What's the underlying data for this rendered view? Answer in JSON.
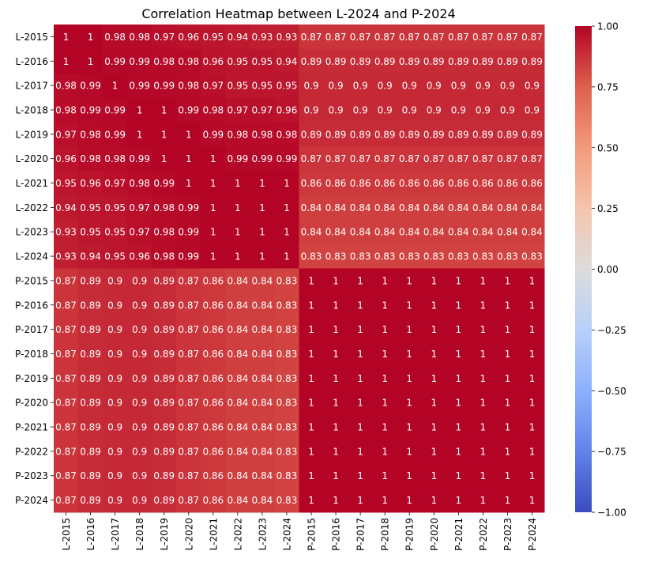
{
  "chart_data": {
    "type": "heatmap",
    "title": "Correlation Heatmap between L-2024 and P-2024",
    "xlabel": "",
    "ylabel": "",
    "rows": [
      "L-2015",
      "L-2016",
      "L-2017",
      "L-2018",
      "L-2019",
      "L-2020",
      "L-2021",
      "L-2022",
      "L-2023",
      "L-2024",
      "P-2015",
      "P-2016",
      "P-2017",
      "P-2018",
      "P-2019",
      "P-2020",
      "P-2021",
      "P-2022",
      "P-2023",
      "P-2024"
    ],
    "columns": [
      "L-2015",
      "L-2016",
      "L-2017",
      "L-2018",
      "L-2019",
      "L-2020",
      "L-2021",
      "L-2022",
      "L-2023",
      "L-2024",
      "P-2015",
      "P-2016",
      "P-2017",
      "P-2018",
      "P-2019",
      "P-2020",
      "P-2021",
      "P-2022",
      "P-2023",
      "P-2024"
    ],
    "values": [
      [
        1,
        1,
        0.98,
        0.98,
        0.97,
        0.96,
        0.95,
        0.94,
        0.93,
        0.93,
        0.87,
        0.87,
        0.87,
        0.87,
        0.87,
        0.87,
        0.87,
        0.87,
        0.87,
        0.87
      ],
      [
        1,
        1,
        0.99,
        0.99,
        0.98,
        0.98,
        0.96,
        0.95,
        0.95,
        0.94,
        0.89,
        0.89,
        0.89,
        0.89,
        0.89,
        0.89,
        0.89,
        0.89,
        0.89,
        0.89
      ],
      [
        0.98,
        0.99,
        1,
        0.99,
        0.99,
        0.98,
        0.97,
        0.95,
        0.95,
        0.95,
        0.9,
        0.9,
        0.9,
        0.9,
        0.9,
        0.9,
        0.9,
        0.9,
        0.9,
        0.9
      ],
      [
        0.98,
        0.99,
        0.99,
        1,
        1,
        0.99,
        0.98,
        0.97,
        0.97,
        0.96,
        0.9,
        0.9,
        0.9,
        0.9,
        0.9,
        0.9,
        0.9,
        0.9,
        0.9,
        0.9
      ],
      [
        0.97,
        0.98,
        0.99,
        1,
        1,
        1,
        0.99,
        0.98,
        0.98,
        0.98,
        0.89,
        0.89,
        0.89,
        0.89,
        0.89,
        0.89,
        0.89,
        0.89,
        0.89,
        0.89
      ],
      [
        0.96,
        0.98,
        0.98,
        0.99,
        1,
        1,
        1,
        0.99,
        0.99,
        0.99,
        0.87,
        0.87,
        0.87,
        0.87,
        0.87,
        0.87,
        0.87,
        0.87,
        0.87,
        0.87
      ],
      [
        0.95,
        0.96,
        0.97,
        0.98,
        0.99,
        1,
        1,
        1,
        1,
        1,
        0.86,
        0.86,
        0.86,
        0.86,
        0.86,
        0.86,
        0.86,
        0.86,
        0.86,
        0.86
      ],
      [
        0.94,
        0.95,
        0.95,
        0.97,
        0.98,
        0.99,
        1,
        1,
        1,
        1,
        0.84,
        0.84,
        0.84,
        0.84,
        0.84,
        0.84,
        0.84,
        0.84,
        0.84,
        0.84
      ],
      [
        0.93,
        0.95,
        0.95,
        0.97,
        0.98,
        0.99,
        1,
        1,
        1,
        1,
        0.84,
        0.84,
        0.84,
        0.84,
        0.84,
        0.84,
        0.84,
        0.84,
        0.84,
        0.84
      ],
      [
        0.93,
        0.94,
        0.95,
        0.96,
        0.98,
        0.99,
        1,
        1,
        1,
        1,
        0.83,
        0.83,
        0.83,
        0.83,
        0.83,
        0.83,
        0.83,
        0.83,
        0.83,
        0.83
      ],
      [
        0.87,
        0.89,
        0.9,
        0.9,
        0.89,
        0.87,
        0.86,
        0.84,
        0.84,
        0.83,
        1,
        1,
        1,
        1,
        1,
        1,
        1,
        1,
        1,
        1
      ],
      [
        0.87,
        0.89,
        0.9,
        0.9,
        0.89,
        0.87,
        0.86,
        0.84,
        0.84,
        0.83,
        1,
        1,
        1,
        1,
        1,
        1,
        1,
        1,
        1,
        1
      ],
      [
        0.87,
        0.89,
        0.9,
        0.9,
        0.89,
        0.87,
        0.86,
        0.84,
        0.84,
        0.83,
        1,
        1,
        1,
        1,
        1,
        1,
        1,
        1,
        1,
        1
      ],
      [
        0.87,
        0.89,
        0.9,
        0.9,
        0.89,
        0.87,
        0.86,
        0.84,
        0.84,
        0.83,
        1,
        1,
        1,
        1,
        1,
        1,
        1,
        1,
        1,
        1
      ],
      [
        0.87,
        0.89,
        0.9,
        0.9,
        0.89,
        0.87,
        0.86,
        0.84,
        0.84,
        0.83,
        1,
        1,
        1,
        1,
        1,
        1,
        1,
        1,
        1,
        1
      ],
      [
        0.87,
        0.89,
        0.9,
        0.9,
        0.89,
        0.87,
        0.86,
        0.84,
        0.84,
        0.83,
        1,
        1,
        1,
        1,
        1,
        1,
        1,
        1,
        1,
        1
      ],
      [
        0.87,
        0.89,
        0.9,
        0.9,
        0.89,
        0.87,
        0.86,
        0.84,
        0.84,
        0.83,
        1,
        1,
        1,
        1,
        1,
        1,
        1,
        1,
        1,
        1
      ],
      [
        0.87,
        0.89,
        0.9,
        0.9,
        0.89,
        0.87,
        0.86,
        0.84,
        0.84,
        0.83,
        1,
        1,
        1,
        1,
        1,
        1,
        1,
        1,
        1,
        1
      ],
      [
        0.87,
        0.89,
        0.9,
        0.9,
        0.89,
        0.87,
        0.86,
        0.84,
        0.84,
        0.83,
        1,
        1,
        1,
        1,
        1,
        1,
        1,
        1,
        1,
        1
      ],
      [
        0.87,
        0.89,
        0.9,
        0.9,
        0.89,
        0.87,
        0.86,
        0.84,
        0.84,
        0.83,
        1,
        1,
        1,
        1,
        1,
        1,
        1,
        1,
        1,
        1
      ]
    ],
    "colormap": "coolwarm",
    "colormap_stops": [
      "#3b4cc0",
      "#dddcdc",
      "#b40426"
    ],
    "vmin": -1,
    "vmax": 1,
    "colorbar_ticks": [
      "1.00",
      "0.75",
      "0.50",
      "0.25",
      "0.00",
      "−0.25",
      "−0.50",
      "−0.75",
      "−1.00"
    ],
    "colorbar_tick_values": [
      1,
      0.75,
      0.5,
      0.25,
      0,
      -0.25,
      -0.5,
      -0.75,
      -1
    ],
    "annotated": true,
    "grid": false,
    "legend": "colorbar-right"
  }
}
